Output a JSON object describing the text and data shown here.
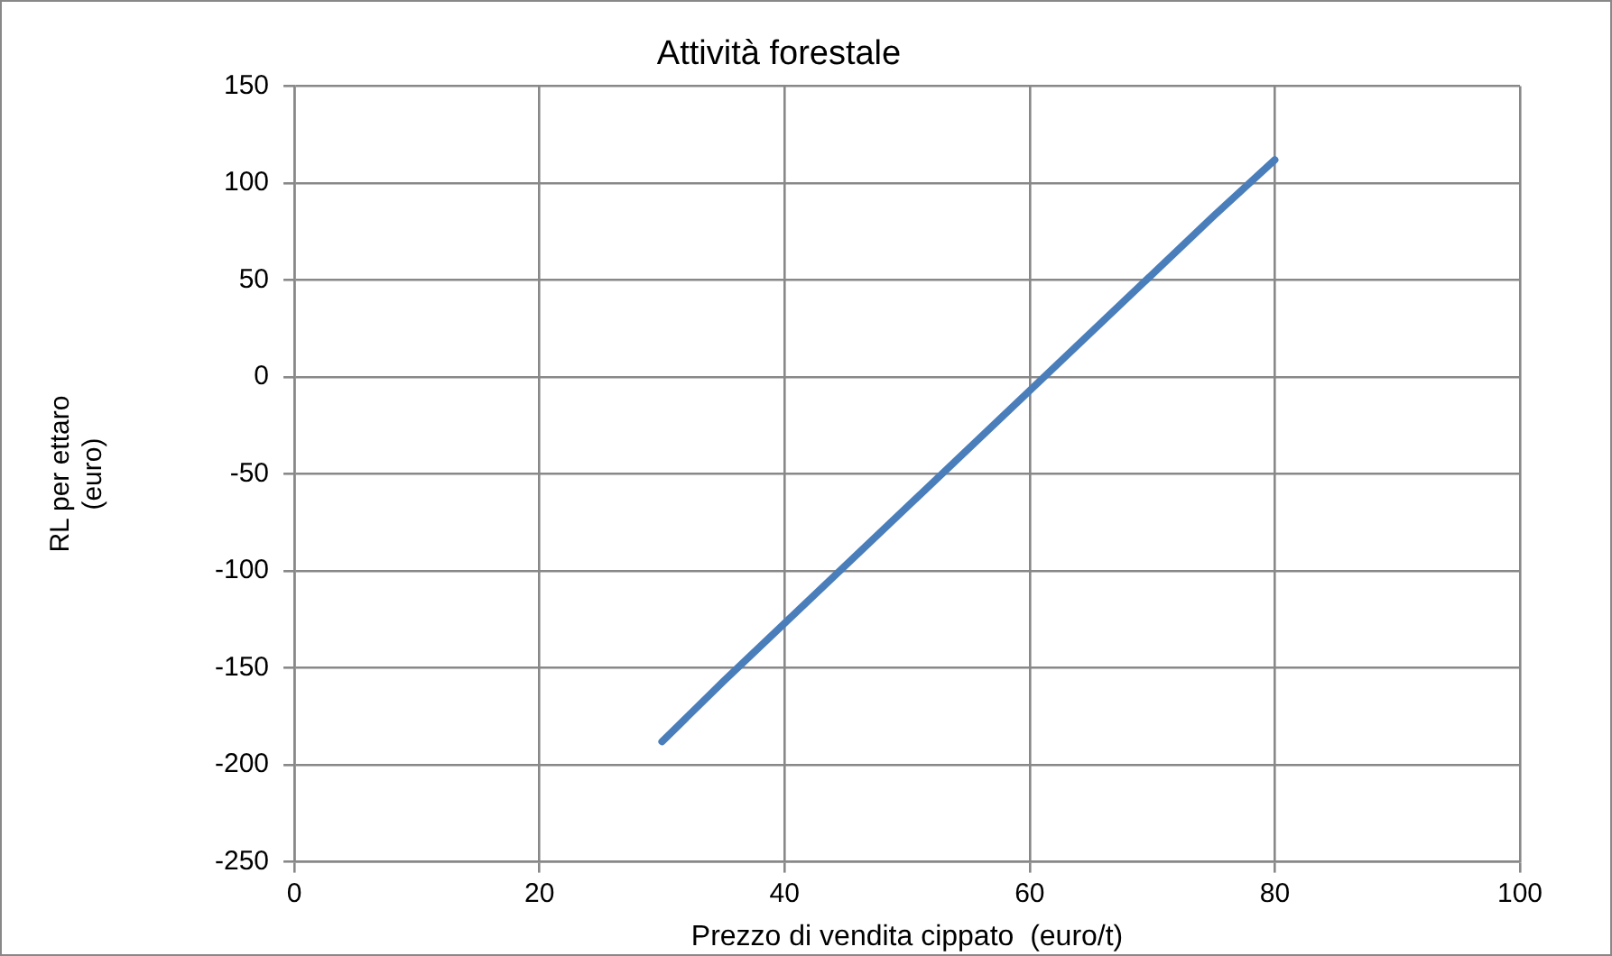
{
  "chart_data": {
    "type": "line",
    "title": "Attività forestale",
    "xlabel": "Prezzo di vendita cippato  (euro/t)",
    "ylabel": "RL per ettaro\n(euro)",
    "x": [
      30,
      35,
      65,
      75,
      80
    ],
    "series": [
      {
        "color": "#4a7ebb",
        "values": [
          -188,
          -157,
          23,
          83,
          112
        ]
      }
    ],
    "xlim": [
      0,
      100
    ],
    "xticks": [
      0,
      20,
      40,
      60,
      80,
      100
    ],
    "ylim": [
      -250,
      150
    ],
    "yticks": [
      -250,
      -200,
      -150,
      -100,
      -50,
      0,
      50,
      100,
      150
    ],
    "grid": true,
    "legend": false,
    "marker": "none",
    "line_style": "solid"
  }
}
